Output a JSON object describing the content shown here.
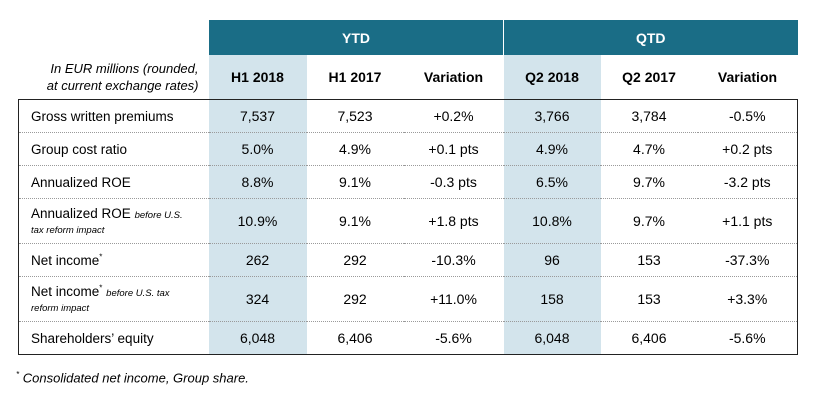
{
  "header": {
    "units_line1": "In EUR millions (rounded,",
    "units_line2": "at current exchange rates)",
    "groups": [
      "YTD",
      "QTD"
    ],
    "columns": [
      "H1 2018",
      "H1 2017",
      "Variation",
      "Q2 2018",
      "Q2 2017",
      "Variation"
    ]
  },
  "rows": [
    {
      "label": "Gross written premiums",
      "note": "",
      "star": "",
      "values": [
        "7,537",
        "7,523",
        "+0.2%",
        "3,766",
        "3,784",
        "-0.5%"
      ]
    },
    {
      "label": "Group cost ratio",
      "note": "",
      "star": "",
      "values": [
        "5.0%",
        "4.9%",
        "+0.1 pts",
        "4.9%",
        "4.7%",
        "+0.2 pts"
      ]
    },
    {
      "label": "Annualized ROE",
      "note": "",
      "star": "",
      "values": [
        "8.8%",
        "9.1%",
        "-0.3 pts",
        "6.5%",
        "9.7%",
        "-3.2 pts"
      ]
    },
    {
      "label": "Annualized ROE",
      "note_a": "before U.S.",
      "note_b": "tax reform impact",
      "star": "",
      "values": [
        "10.9%",
        "9.1%",
        "+1.8 pts",
        "10.8%",
        "9.7%",
        "+1.1 pts"
      ]
    },
    {
      "label": "Net income",
      "note": "",
      "star": "*",
      "values": [
        "262",
        "292",
        "-10.3%",
        "96",
        "153",
        "-37.3%"
      ]
    },
    {
      "label": "Net income",
      "note_a": "before U.S. tax",
      "note_b": "reform impact",
      "star": "*",
      "values": [
        "324",
        "292",
        "+11.0%",
        "158",
        "153",
        "+3.3%"
      ]
    },
    {
      "label": "Shareholders’ equity",
      "note": "",
      "star": "",
      "values": [
        "6,048",
        "6,406",
        "-5.6%",
        "6,048",
        "6,406",
        "-5.6%"
      ]
    }
  ],
  "footnote": {
    "star": "*",
    "text": " Consolidated net income, Group share."
  },
  "colors": {
    "header_band": "#1a6d86",
    "highlight_column": "#d3e4ec"
  }
}
